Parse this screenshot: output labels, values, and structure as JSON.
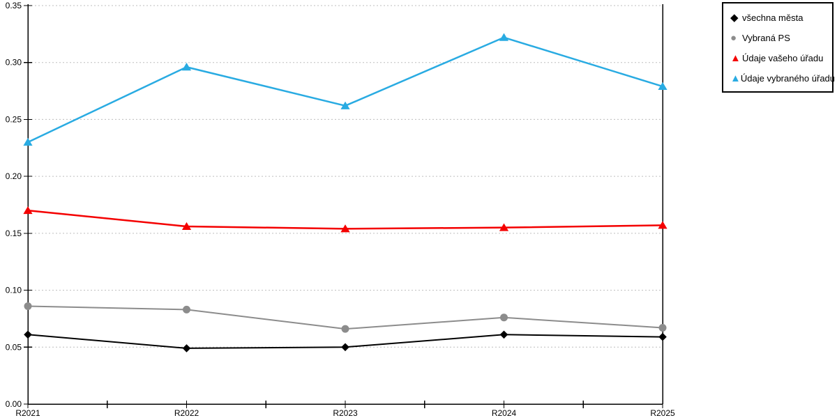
{
  "chart_data": {
    "type": "line",
    "title": "",
    "xlabel": "",
    "ylabel": "",
    "categories": [
      "R2021",
      "R2022",
      "R2023",
      "R2024",
      "R2025"
    ],
    "y_axis": {
      "min": 0,
      "max": 0.35,
      "step": 0.05,
      "tick_labels": [
        "0.00",
        "0.05",
        "0.10",
        "0.15",
        "0.20",
        "0.25",
        "0.30",
        "0.35"
      ]
    },
    "grid": "horizontal dotted lines",
    "legend_position": "top-right outside plot",
    "colors": {
      "axis": "#000000",
      "gridline": "#bdbdbd",
      "series_black": "#000000",
      "series_gray": "#8c8c8c",
      "series_red": "#f40000",
      "series_blue": "#29abe2"
    },
    "series": [
      {
        "name": "všechna města",
        "marker": "diamond",
        "marker_glyph": "◆",
        "color": "#000000",
        "values": [
          0.061,
          0.049,
          0.05,
          0.061,
          0.059
        ]
      },
      {
        "name": "Vybraná PS",
        "marker": "circle",
        "marker_glyph": "●",
        "color": "#8c8c8c",
        "values": [
          0.086,
          0.083,
          0.066,
          0.076,
          0.067
        ]
      },
      {
        "name": "Údaje vašeho úřadu",
        "marker": "triangle",
        "marker_glyph": "▲",
        "color": "#f40000",
        "values": [
          0.17,
          0.156,
          0.154,
          0.155,
          0.157
        ]
      },
      {
        "name": "Údaje vybraného úřadu",
        "marker": "triangle",
        "marker_glyph": "▲",
        "color": "#29abe2",
        "values": [
          0.23,
          0.296,
          0.262,
          0.322,
          0.279
        ]
      }
    ]
  }
}
